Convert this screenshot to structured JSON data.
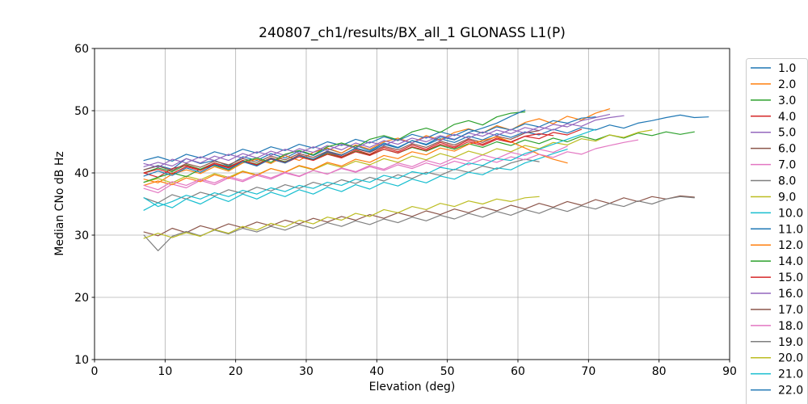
{
  "figure": {
    "title": "240807_ch1/results/BX_all_1 GLONASS L1(P)",
    "xlabel": "Elevation (deg)",
    "ylabel": "Median CNo dB Hz"
  },
  "chart_data": {
    "type": "line",
    "title": "240807_ch1/results/BX_all_1 GLONASS L1(P)",
    "xlabel": "Elevation (deg)",
    "ylabel": "Median CNo dB Hz",
    "xlim": [
      0,
      90
    ],
    "ylim": [
      10,
      60
    ],
    "xticks": [
      0,
      10,
      20,
      30,
      40,
      50,
      60,
      70,
      80,
      90
    ],
    "yticks": [
      10,
      20,
      30,
      40,
      50,
      60
    ],
    "grid": true,
    "grid_color": "#b0b0b0",
    "spine_color": "#000000",
    "legend_position": "outside-right",
    "legend_border_color": "#cccccc",
    "x_step": 2,
    "series": [
      {
        "name": "1.0",
        "color": "#1f77b4",
        "x_start": 7,
        "values": [
          40.5,
          41.2,
          40.6,
          42.3,
          41.5,
          42.0,
          41.1,
          42.6,
          42.0,
          43.1,
          42.4,
          43.5,
          42.8,
          43.9,
          43.2,
          44.4,
          43.6,
          44.8,
          44.1,
          45.2,
          44.5,
          45.5,
          44.9,
          45.9,
          45.3,
          46.3,
          45.7,
          46.6,
          46.1,
          47.0,
          46.4,
          47.3,
          46.9,
          47.7,
          47.2,
          48.0,
          48.4,
          48.9,
          49.3,
          48.9,
          49.0
        ]
      },
      {
        "name": "2.0",
        "color": "#ff7f0e",
        "x_start": 7,
        "values": [
          39.0,
          38.4,
          39.8,
          40.5,
          39.9,
          41.0,
          40.3,
          41.6,
          42.2,
          41.5,
          42.8,
          42.0,
          43.3,
          44.0,
          43.2,
          44.5,
          43.8,
          45.0,
          45.6,
          44.8,
          46.0,
          45.3,
          46.5,
          47.1,
          46.4,
          47.6,
          46.9,
          48.1,
          48.7,
          47.9,
          49.1,
          48.5,
          49.6,
          50.3
        ]
      },
      {
        "name": "3.0",
        "color": "#2ca02c",
        "x_start": 7,
        "values": [
          40.0,
          40.8,
          40.2,
          41.3,
          40.6,
          41.6,
          41.0,
          42.0,
          41.4,
          42.4,
          41.8,
          42.8,
          42.1,
          43.1,
          42.5,
          43.5,
          42.9,
          43.8,
          43.2,
          44.1,
          43.5,
          44.4,
          43.8,
          44.7,
          44.1,
          45.0,
          44.4,
          45.3,
          44.7,
          45.6,
          45.0,
          45.9,
          45.3,
          46.1,
          45.6,
          46.4,
          46.0,
          46.6,
          46.2,
          46.6
        ]
      },
      {
        "name": "4.0",
        "color": "#d62728",
        "x_start": 7,
        "values": [
          40.0,
          39.3,
          40.7,
          41.2,
          40.5,
          41.6,
          40.9,
          42.0,
          41.3,
          42.4,
          41.7,
          42.9,
          42.2,
          43.3,
          42.6,
          43.7,
          43.0,
          44.1,
          43.4,
          44.5,
          43.8,
          44.9,
          44.2,
          45.3,
          44.6,
          45.6,
          45.0,
          45.9,
          46.3,
          46.0
        ]
      },
      {
        "name": "5.0",
        "color": "#9467bd",
        "x_start": 7,
        "values": [
          41.0,
          41.7,
          41.1,
          42.3,
          41.6,
          42.7,
          42.0,
          43.1,
          42.4,
          43.5,
          42.8,
          43.9,
          43.3,
          44.4,
          43.7,
          44.8,
          44.1,
          45.2,
          44.6,
          45.6,
          45.0,
          46.0,
          45.4,
          46.4,
          45.9,
          46.9,
          46.3,
          47.3,
          46.8,
          47.8,
          47.4,
          48.4,
          48.9,
          49.4
        ]
      },
      {
        "name": "6.0",
        "color": "#8c564b",
        "x_start": 7,
        "values": [
          40.5,
          41.1,
          40.4,
          41.5,
          40.9,
          41.9,
          41.3,
          42.3,
          41.7,
          42.7,
          42.1,
          43.1,
          42.5,
          43.5,
          42.9,
          43.9,
          43.3,
          44.3,
          43.7,
          44.7,
          44.1,
          45.1,
          44.5,
          45.5,
          44.9,
          45.9,
          45.4,
          46.4,
          46.8
        ]
      },
      {
        "name": "7.0",
        "color": "#e377c2",
        "x_start": 7,
        "values": [
          37.5,
          36.8,
          38.2,
          37.6,
          38.8,
          38.1,
          39.2,
          38.6,
          39.6,
          39.0,
          40.0,
          39.4,
          40.4,
          39.8,
          40.8,
          40.2,
          41.2,
          40.6,
          41.6,
          41.0,
          42.0,
          41.4,
          42.4,
          41.9,
          42.9,
          42.3,
          43.3,
          42.8,
          43.8,
          43.3,
          44.3
        ]
      },
      {
        "name": "8.0",
        "color": "#7f7f7f",
        "x_start": 7,
        "values": [
          36.0,
          35.2,
          36.5,
          35.8,
          36.9,
          36.3,
          37.3,
          36.7,
          37.7,
          37.1,
          38.1,
          37.5,
          38.5,
          37.9,
          38.9,
          38.3,
          39.3,
          38.7,
          39.7,
          39.1,
          40.1,
          39.6,
          40.6,
          40.1,
          41.1,
          40.6,
          41.6,
          42.2,
          41.8
        ]
      },
      {
        "name": "9.0",
        "color": "#bcbd22",
        "x_start": 7,
        "values": [
          38.5,
          39.1,
          38.4,
          39.5,
          38.9,
          39.9,
          39.3,
          40.3,
          39.7,
          40.7,
          40.1,
          41.1,
          40.5,
          41.5,
          40.9,
          41.9,
          41.3,
          42.3,
          41.7,
          42.7,
          42.1,
          43.1,
          42.5,
          43.5,
          42.9,
          43.9,
          43.4,
          44.4,
          43.9,
          44.9,
          44.5,
          45.5,
          45.1,
          46.1,
          45.7,
          46.5,
          46.9
        ]
      },
      {
        "name": "10.0",
        "color": "#17becf",
        "x_start": 7,
        "values": [
          34.0,
          35.2,
          34.4,
          35.8,
          35.0,
          36.2,
          35.4,
          36.6,
          35.8,
          36.9,
          36.2,
          37.3,
          36.6,
          37.7,
          37.0,
          38.1,
          37.4,
          38.5,
          37.9,
          39.0,
          38.4,
          39.5,
          39.0,
          40.1,
          39.7,
          40.8,
          40.5,
          41.6,
          42.3,
          43.1,
          43.8
        ]
      },
      {
        "name": "11.0",
        "color": "#1f77b4",
        "x_start": 7,
        "values": [
          42.0,
          42.6,
          41.9,
          43.0,
          42.4,
          43.4,
          42.8,
          43.8,
          43.2,
          44.2,
          43.6,
          44.6,
          44.0,
          45.0,
          44.4,
          45.4,
          44.8,
          45.8,
          45.2,
          46.2,
          45.6,
          46.6,
          46.0,
          47.0,
          46.4,
          47.4,
          46.9,
          47.9,
          47.4,
          48.4,
          48.0,
          48.8,
          49.0
        ]
      },
      {
        "name": "12.0",
        "color": "#ff7f0e",
        "x_start": 7,
        "values": [
          38.0,
          38.7,
          38.1,
          39.2,
          38.6,
          39.7,
          39.1,
          40.2,
          39.6,
          40.7,
          40.1,
          41.2,
          40.6,
          41.7,
          41.1,
          42.2,
          41.7,
          42.8,
          42.3,
          43.4,
          42.9,
          44.0,
          43.5,
          44.6,
          45.2,
          45.8,
          45.0,
          44.0,
          43.0,
          42.2,
          41.6
        ]
      },
      {
        "name": "14.0",
        "color": "#2ca02c",
        "x_start": 7,
        "values": [
          38.5,
          39.3,
          40.0,
          39.4,
          40.6,
          41.2,
          40.5,
          41.8,
          42.4,
          41.7,
          43.0,
          43.6,
          42.9,
          44.2,
          44.8,
          44.1,
          45.4,
          46.0,
          45.3,
          46.6,
          47.2,
          46.5,
          47.8,
          48.4,
          47.7,
          49.0,
          49.6,
          49.8
        ]
      },
      {
        "name": "15.0",
        "color": "#d62728",
        "x_start": 7,
        "values": [
          40.0,
          40.6,
          39.9,
          41.0,
          40.4,
          41.4,
          40.8,
          41.8,
          41.2,
          42.2,
          41.6,
          42.6,
          42.0,
          43.0,
          42.4,
          43.4,
          42.8,
          43.8,
          43.2,
          44.2,
          43.6,
          44.6,
          44.0,
          45.0,
          44.4,
          45.4,
          44.9,
          45.9,
          45.5,
          46.5,
          46.1,
          47.0
        ]
      },
      {
        "name": "16.0",
        "color": "#9467bd",
        "x_start": 7,
        "values": [
          41.5,
          40.9,
          42.2,
          41.6,
          42.6,
          42.0,
          43.0,
          42.4,
          43.4,
          42.8,
          43.8,
          43.2,
          44.2,
          43.6,
          44.6,
          44.0,
          45.0,
          44.4,
          45.4,
          44.8,
          45.8,
          45.2,
          46.2,
          45.6,
          46.6,
          46.0,
          47.0,
          46.4,
          47.4,
          46.9,
          47.9,
          47.5,
          48.5,
          48.9,
          49.2
        ]
      },
      {
        "name": "17.0",
        "color": "#8c564b",
        "x_start": 7,
        "values": [
          30.5,
          29.9,
          31.1,
          30.4,
          31.5,
          30.9,
          31.8,
          31.2,
          32.1,
          31.5,
          32.4,
          31.8,
          32.7,
          32.1,
          33.0,
          32.4,
          33.3,
          32.7,
          33.6,
          33.0,
          33.9,
          33.3,
          34.2,
          33.6,
          34.5,
          33.9,
          34.8,
          34.2,
          35.1,
          34.5,
          35.4,
          34.8,
          35.7,
          35.1,
          36.0,
          35.4,
          36.2,
          35.8,
          36.3,
          36.1
        ]
      },
      {
        "name": "18.0",
        "color": "#e377c2",
        "x_start": 7,
        "values": [
          38.0,
          37.3,
          38.6,
          38.0,
          39.0,
          38.4,
          39.4,
          38.8,
          39.8,
          39.2,
          40.1,
          39.5,
          40.4,
          39.8,
          40.7,
          40.1,
          41.0,
          40.4,
          41.3,
          40.7,
          41.6,
          41.0,
          41.9,
          41.3,
          42.2,
          41.7,
          42.6,
          42.1,
          43.0,
          42.5,
          43.4,
          43.0,
          43.9,
          44.4,
          44.9,
          45.3
        ]
      },
      {
        "name": "19.0",
        "color": "#7f7f7f",
        "x_start": 7,
        "values": [
          30.0,
          27.5,
          29.8,
          30.6,
          29.9,
          30.8,
          30.2,
          31.1,
          30.5,
          31.4,
          30.8,
          31.7,
          31.1,
          32.0,
          31.4,
          32.3,
          31.7,
          32.6,
          32.0,
          32.9,
          32.3,
          33.2,
          32.6,
          33.5,
          32.9,
          33.8,
          33.2,
          34.1,
          33.5,
          34.4,
          33.8,
          34.7,
          34.2,
          35.1,
          34.6,
          35.5,
          35.0,
          35.8,
          36.2,
          36.0
        ]
      },
      {
        "name": "20.0",
        "color": "#bcbd22",
        "x_start": 7,
        "values": [
          29.5,
          30.3,
          29.6,
          30.4,
          29.8,
          30.9,
          30.3,
          31.4,
          30.8,
          31.9,
          31.3,
          32.4,
          31.8,
          32.9,
          32.4,
          33.5,
          33.0,
          34.1,
          33.6,
          34.6,
          34.1,
          35.1,
          34.6,
          35.5,
          35.0,
          35.8,
          35.4,
          36.0,
          36.2
        ]
      },
      {
        "name": "21.0",
        "color": "#17becf",
        "x_start": 7,
        "values": [
          36.0,
          34.6,
          35.4,
          36.4,
          35.8,
          36.8,
          36.2,
          37.2,
          36.6,
          37.6,
          37.0,
          38.0,
          37.5,
          38.5,
          38.0,
          39.0,
          38.5,
          39.6,
          39.1,
          40.2,
          39.8,
          40.9,
          40.5,
          41.6,
          41.2,
          42.3,
          42.0,
          43.1,
          43.8,
          44.6,
          45.4,
          46.2,
          47.0
        ]
      },
      {
        "name": "22.0",
        "color": "#1f77b4",
        "x_start": 7,
        "values": [
          39.5,
          40.3,
          39.6,
          40.8,
          40.1,
          41.3,
          40.6,
          41.8,
          41.1,
          42.3,
          41.6,
          42.8,
          42.2,
          43.4,
          42.8,
          44.0,
          43.4,
          44.6,
          44.0,
          45.2,
          44.6,
          45.8,
          45.3,
          46.5,
          47.2,
          48.0,
          49.1,
          50.1
        ]
      }
    ]
  }
}
